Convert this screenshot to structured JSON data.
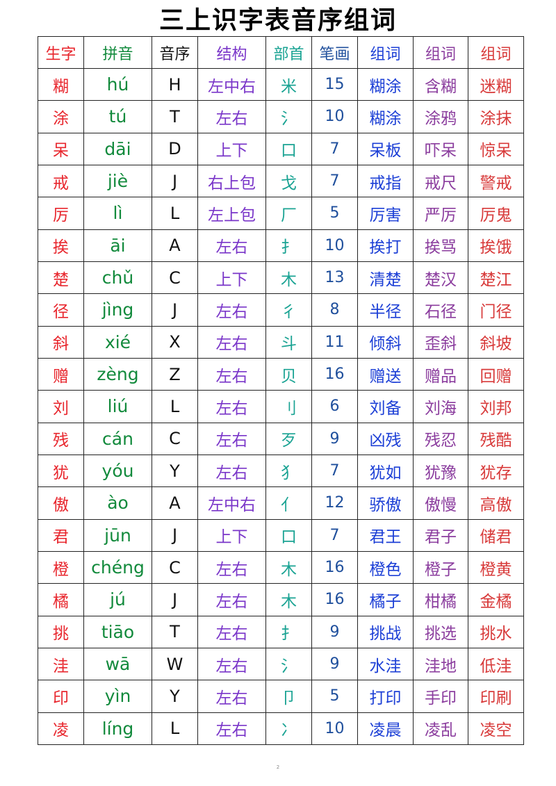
{
  "title": "三上识字表音序组词",
  "colors": {
    "char": "#e8262d",
    "pinyin": "#128a3c",
    "seq": "#111111",
    "structure": "#7a36c9",
    "radical": "#1aa393",
    "strokes": "#1f4f9c",
    "word1": "#1c3fd6",
    "word2": "#8b3d9e",
    "word3": "#d83a3a"
  },
  "headers": [
    "生字",
    "拼音",
    "音序",
    "结构",
    "部首",
    "笔画",
    "组词",
    "组词",
    "组词"
  ],
  "rows": [
    [
      "糊",
      "hú",
      "H",
      "左中右",
      "米",
      "15",
      "糊涂",
      "含糊",
      "迷糊"
    ],
    [
      "涂",
      "tú",
      "T",
      "左右",
      "氵",
      "10",
      "糊涂",
      "涂鸦",
      "涂抹"
    ],
    [
      "呆",
      "dāi",
      "D",
      "上下",
      "口",
      "7",
      "呆板",
      "吓呆",
      "惊呆"
    ],
    [
      "戒",
      "jiè",
      "J",
      "右上包",
      "戈",
      "7",
      "戒指",
      "戒尺",
      "警戒"
    ],
    [
      "厉",
      "lì",
      "L",
      "左上包",
      "厂",
      "5",
      "厉害",
      "严厉",
      "厉鬼"
    ],
    [
      "挨",
      "āi",
      "A",
      "左右",
      "扌",
      "10",
      "挨打",
      "挨骂",
      "挨饿"
    ],
    [
      "楚",
      "chǔ",
      "C",
      "上下",
      "木",
      "13",
      "清楚",
      "楚汉",
      "楚江"
    ],
    [
      "径",
      "jìng",
      "J",
      "左右",
      "彳",
      "8",
      "半径",
      "石径",
      "门径"
    ],
    [
      "斜",
      "xié",
      "X",
      "左右",
      "斗",
      "11",
      "倾斜",
      "歪斜",
      "斜坡"
    ],
    [
      "赠",
      "zèng",
      "Z",
      "左右",
      "贝",
      "16",
      "赠送",
      "赠品",
      "回赠"
    ],
    [
      "刘",
      "liú",
      "L",
      "左右",
      "刂",
      "6",
      "刘备",
      "刘海",
      "刘邦"
    ],
    [
      "残",
      "cán",
      "C",
      "左右",
      "歹",
      "9",
      "凶残",
      "残忍",
      "残酷"
    ],
    [
      "犹",
      "yóu",
      "Y",
      "左右",
      "犭",
      "7",
      "犹如",
      "犹豫",
      "犹存"
    ],
    [
      "傲",
      "ào",
      "A",
      "左中右",
      "亻",
      "12",
      "骄傲",
      "傲慢",
      "高傲"
    ],
    [
      "君",
      "jūn",
      "J",
      "上下",
      "口",
      "7",
      "君王",
      "君子",
      "储君"
    ],
    [
      "橙",
      "chéng",
      "C",
      "左右",
      "木",
      "16",
      "橙色",
      "橙子",
      "橙黄"
    ],
    [
      "橘",
      "jú",
      "J",
      "左右",
      "木",
      "16",
      "橘子",
      "柑橘",
      "金橘"
    ],
    [
      "挑",
      "tiāo",
      "T",
      "左右",
      "扌",
      "9",
      "挑战",
      "挑选",
      "挑水"
    ],
    [
      "洼",
      "wā",
      "W",
      "左右",
      "氵",
      "9",
      "水洼",
      "洼地",
      "低洼"
    ],
    [
      "印",
      "yìn",
      "Y",
      "左右",
      "卩",
      "5",
      "打印",
      "手印",
      "印刷"
    ],
    [
      "凌",
      "líng",
      "L",
      "左右",
      "冫",
      "10",
      "凌晨",
      "凌乱",
      "凌空"
    ]
  ],
  "footer": "2"
}
